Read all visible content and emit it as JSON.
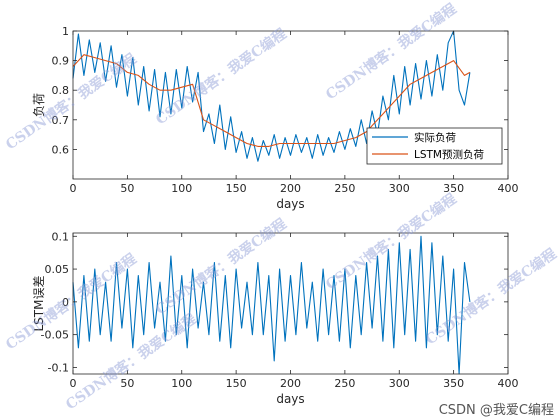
{
  "chart_data": [
    {
      "type": "line",
      "xlabel": "days",
      "ylabel": "负荷",
      "xlim": [
        0,
        400
      ],
      "ylim": [
        0.5,
        1.0
      ],
      "xticks": [
        "0",
        "50",
        "100",
        "150",
        "200",
        "250",
        "300",
        "350",
        "400"
      ],
      "yticks": [
        "0.6",
        "0.7",
        "0.8",
        "0.9",
        "1"
      ],
      "legend_position": "lower-right",
      "series": [
        {
          "name": "实际负荷",
          "color": "#0072bd",
          "x": [
            0,
            5,
            10,
            15,
            20,
            25,
            30,
            35,
            40,
            45,
            50,
            55,
            60,
            65,
            70,
            75,
            80,
            85,
            90,
            95,
            100,
            105,
            110,
            115,
            120,
            125,
            130,
            135,
            140,
            145,
            150,
            155,
            160,
            165,
            170,
            175,
            180,
            185,
            190,
            195,
            200,
            205,
            210,
            215,
            220,
            225,
            230,
            235,
            240,
            245,
            250,
            255,
            260,
            265,
            270,
            275,
            280,
            285,
            290,
            295,
            300,
            305,
            310,
            315,
            320,
            325,
            330,
            335,
            340,
            345,
            350,
            355,
            360,
            365
          ],
          "values": [
            0.84,
            0.99,
            0.85,
            0.97,
            0.86,
            0.96,
            0.83,
            0.95,
            0.81,
            0.92,
            0.78,
            0.91,
            0.75,
            0.88,
            0.73,
            0.87,
            0.71,
            0.86,
            0.72,
            0.87,
            0.74,
            0.88,
            0.76,
            0.86,
            0.66,
            0.72,
            0.62,
            0.75,
            0.6,
            0.71,
            0.59,
            0.66,
            0.57,
            0.64,
            0.56,
            0.63,
            0.58,
            0.65,
            0.57,
            0.64,
            0.58,
            0.65,
            0.59,
            0.64,
            0.57,
            0.65,
            0.58,
            0.64,
            0.59,
            0.66,
            0.6,
            0.67,
            0.61,
            0.7,
            0.62,
            0.73,
            0.65,
            0.78,
            0.7,
            0.85,
            0.72,
            0.88,
            0.75,
            0.89,
            0.77,
            0.9,
            0.78,
            0.92,
            0.8,
            0.96,
            1.0,
            0.8,
            0.75,
            0.86
          ]
        },
        {
          "name": "LSTM预测负荷",
          "color": "#d95319",
          "x": [
            0,
            10,
            20,
            30,
            40,
            50,
            60,
            70,
            80,
            90,
            100,
            110,
            120,
            130,
            140,
            150,
            160,
            170,
            180,
            190,
            200,
            210,
            220,
            230,
            240,
            250,
            260,
            270,
            280,
            290,
            300,
            310,
            320,
            330,
            340,
            350,
            360,
            365
          ],
          "values": [
            0.88,
            0.92,
            0.91,
            0.9,
            0.89,
            0.86,
            0.85,
            0.82,
            0.8,
            0.8,
            0.81,
            0.82,
            0.7,
            0.68,
            0.66,
            0.64,
            0.62,
            0.61,
            0.61,
            0.62,
            0.62,
            0.62,
            0.62,
            0.62,
            0.62,
            0.63,
            0.64,
            0.66,
            0.7,
            0.74,
            0.78,
            0.82,
            0.84,
            0.86,
            0.88,
            0.9,
            0.85,
            0.86
          ]
        }
      ]
    },
    {
      "type": "line",
      "xlabel": "days",
      "ylabel": "LSTM误差",
      "xlim": [
        0,
        400
      ],
      "ylim": [
        -0.11,
        0.105
      ],
      "xticks": [
        "0",
        "50",
        "100",
        "150",
        "200",
        "250",
        "300",
        "350",
        "400"
      ],
      "yticks": [
        "-0.1",
        "-0.05",
        "0",
        "0.05",
        "0.1"
      ],
      "series": [
        {
          "color": "#0072bd",
          "x": [
            0,
            5,
            10,
            15,
            20,
            25,
            30,
            35,
            40,
            45,
            50,
            55,
            60,
            65,
            70,
            75,
            80,
            85,
            90,
            95,
            100,
            105,
            110,
            115,
            120,
            125,
            130,
            135,
            140,
            145,
            150,
            155,
            160,
            165,
            170,
            175,
            180,
            185,
            190,
            195,
            200,
            205,
            210,
            215,
            220,
            225,
            230,
            235,
            240,
            245,
            250,
            255,
            260,
            265,
            270,
            275,
            280,
            285,
            290,
            295,
            300,
            305,
            310,
            315,
            320,
            325,
            330,
            335,
            340,
            345,
            350,
            355,
            360,
            365
          ],
          "values": [
            0.03,
            -0.07,
            0.04,
            -0.06,
            0.05,
            -0.05,
            0.03,
            -0.06,
            0.06,
            -0.04,
            0.05,
            -0.07,
            0.04,
            -0.05,
            0.06,
            -0.04,
            0.03,
            -0.06,
            0.07,
            -0.05,
            0.04,
            -0.07,
            0.05,
            -0.04,
            0.03,
            -0.05,
            0.06,
            -0.06,
            0.04,
            -0.07,
            0.05,
            -0.04,
            0.03,
            -0.05,
            0.06,
            -0.05,
            0.04,
            -0.09,
            0.05,
            -0.06,
            0.04,
            -0.05,
            0.06,
            -0.04,
            0.03,
            -0.06,
            0.05,
            -0.05,
            0.04,
            -0.06,
            0.05,
            -0.07,
            0.04,
            -0.05,
            0.06,
            -0.04,
            0.07,
            -0.06,
            0.08,
            -0.07,
            0.09,
            -0.05,
            0.08,
            -0.06,
            0.1,
            -0.07,
            0.09,
            -0.05,
            0.07,
            -0.06,
            0.05,
            -0.11,
            0.06,
            0.0
          ]
        }
      ]
    }
  ],
  "watermarks": [
    "CSDN博客：我爱C编程",
    "CSDN博客：我爱C编程",
    "CSDN博客：我爱C编程",
    "CSDN博客：我爱C编程",
    "CSDN博客：我爱C编程",
    "CSDN博客：我爱C编程",
    "CSDN博客：我爱C编程",
    "CSDN博客：我爱C编程"
  ],
  "footer": "CSDN @我爱C编程"
}
